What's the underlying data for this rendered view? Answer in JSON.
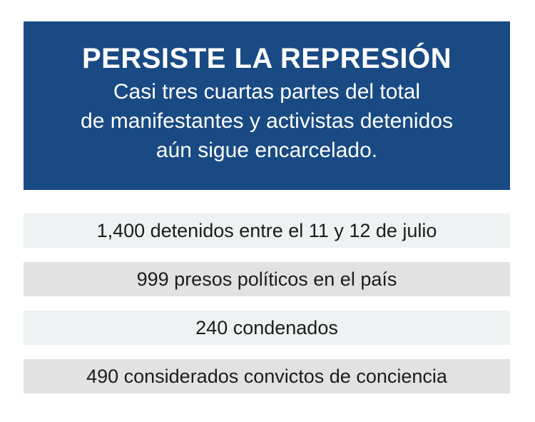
{
  "header": {
    "title": "PERSISTE LA REPRESIÓN",
    "subtitle_lines": [
      "Casi tres cuartas partes del total",
      "de manifestantes y activistas detenidos",
      "aún sigue encarcelado."
    ]
  },
  "rows": [
    {
      "text": "1,400 detenidos entre el 11 y 12 de julio"
    },
    {
      "text": "999 presos políticos en el país"
    },
    {
      "text": "240 condenados"
    },
    {
      "text": "490 considerados convictos de conciencia"
    }
  ],
  "colors": {
    "header_bg": "#194a83",
    "row_light": "#eef2f3",
    "row_dark": "#e2e2e2"
  }
}
